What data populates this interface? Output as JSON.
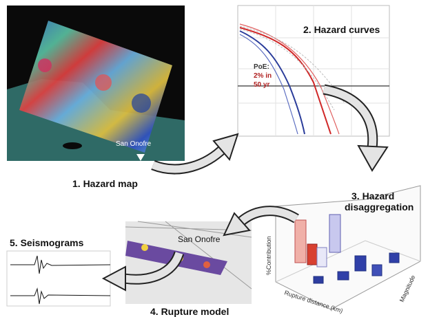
{
  "panels": [
    {
      "label": "1. Hazard map",
      "site": "San Onofre"
    },
    {
      "label": "2. Hazard curves",
      "poe": [
        "PoE:",
        "2% in",
        "50 yr"
      ]
    },
    {
      "label": [
        "3. Hazard",
        "disaggregation"
      ],
      "y_axis": "%Contribution",
      "x_axis": "Rupture distance (km)",
      "z_axis": "Magnitude"
    },
    {
      "label": "4. Rupture model",
      "site": "San Onofre"
    },
    {
      "label": "5. Seismograms"
    }
  ]
}
